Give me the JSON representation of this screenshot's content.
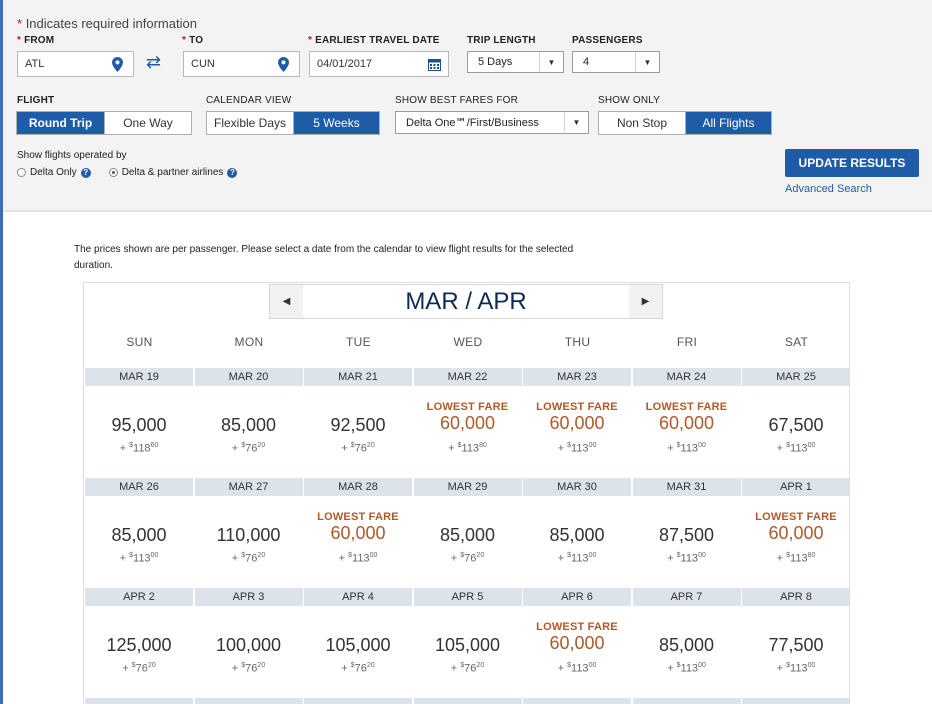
{
  "required_note": "Indicates required information",
  "from": {
    "label": "FROM",
    "value": "ATL"
  },
  "to": {
    "label": "TO",
    "value": "CUN"
  },
  "travel_date": {
    "label": "EARLIEST TRAVEL DATE",
    "value": "04/01/2017"
  },
  "trip_length": {
    "label": "TRIP LENGTH",
    "value": "5 Days"
  },
  "passengers": {
    "label": "PASSENGERS",
    "value": "4"
  },
  "flight": {
    "label": "FLIGHT",
    "options": [
      "Round Trip",
      "One Way"
    ],
    "selected": 0
  },
  "calendar_view": {
    "label": "CALENDAR VIEW",
    "options": [
      "Flexible Days",
      "5 Weeks"
    ],
    "selected": 1
  },
  "best_fares": {
    "label": "SHOW BEST FARES FOR",
    "value": "Delta One℠/First/Business"
  },
  "show_only": {
    "label": "SHOW ONLY",
    "options": [
      "Non Stop",
      "All Flights"
    ],
    "selected": 1
  },
  "operated_by": {
    "label": "Show flights operated by",
    "options": [
      "Delta Only",
      "Delta & partner airlines"
    ],
    "selected": 1
  },
  "update_button": "UPDATE RESULTS",
  "advanced_search": "Advanced Search",
  "price_note": "The prices shown are per passenger. Please select a date from the calendar to view flight results for the selected duration.",
  "calendar": {
    "month_title": "MAR / APR",
    "weekdays": [
      "SUN",
      "MON",
      "TUE",
      "WED",
      "THU",
      "FRI",
      "SAT"
    ],
    "lowest_label": "LOWEST FARE",
    "weeks": [
      [
        {
          "date": "MAR 19",
          "miles": "95,000",
          "tax": "118",
          "cents": "60",
          "lowest": false
        },
        {
          "date": "MAR 20",
          "miles": "85,000",
          "tax": "76",
          "cents": "20",
          "lowest": false
        },
        {
          "date": "MAR 21",
          "miles": "92,500",
          "tax": "76",
          "cents": "20",
          "lowest": false
        },
        {
          "date": "MAR 22",
          "miles": "60,000",
          "tax": "113",
          "cents": "80",
          "lowest": true
        },
        {
          "date": "MAR 23",
          "miles": "60,000",
          "tax": "113",
          "cents": "00",
          "lowest": true
        },
        {
          "date": "MAR 24",
          "miles": "60,000",
          "tax": "113",
          "cents": "00",
          "lowest": true
        },
        {
          "date": "MAR 25",
          "miles": "67,500",
          "tax": "113",
          "cents": "00",
          "lowest": false
        }
      ],
      [
        {
          "date": "MAR 26",
          "miles": "85,000",
          "tax": "113",
          "cents": "00",
          "lowest": false
        },
        {
          "date": "MAR 27",
          "miles": "110,000",
          "tax": "76",
          "cents": "20",
          "lowest": false
        },
        {
          "date": "MAR 28",
          "miles": "60,000",
          "tax": "113",
          "cents": "00",
          "lowest": true
        },
        {
          "date": "MAR 29",
          "miles": "85,000",
          "tax": "76",
          "cents": "20",
          "lowest": false
        },
        {
          "date": "MAR 30",
          "miles": "85,000",
          "tax": "113",
          "cents": "00",
          "lowest": false
        },
        {
          "date": "MAR 31",
          "miles": "87,500",
          "tax": "113",
          "cents": "00",
          "lowest": false
        },
        {
          "date": "APR 1",
          "miles": "60,000",
          "tax": "113",
          "cents": "80",
          "lowest": true
        }
      ],
      [
        {
          "date": "APR 2",
          "miles": "125,000",
          "tax": "76",
          "cents": "20",
          "lowest": false
        },
        {
          "date": "APR 3",
          "miles": "100,000",
          "tax": "76",
          "cents": "20",
          "lowest": false
        },
        {
          "date": "APR 4",
          "miles": "105,000",
          "tax": "76",
          "cents": "20",
          "lowest": false
        },
        {
          "date": "APR 5",
          "miles": "105,000",
          "tax": "76",
          "cents": "20",
          "lowest": false
        },
        {
          "date": "APR 6",
          "miles": "60,000",
          "tax": "113",
          "cents": "00",
          "lowest": true
        },
        {
          "date": "APR 7",
          "miles": "85,000",
          "tax": "113",
          "cents": "00",
          "lowest": false
        },
        {
          "date": "APR 8",
          "miles": "77,500",
          "tax": "113",
          "cents": "00",
          "lowest": false
        }
      ]
    ]
  },
  "colors": {
    "primary": "#1f5ca8",
    "lowest": "#b0592b",
    "required": "#c8102e"
  }
}
